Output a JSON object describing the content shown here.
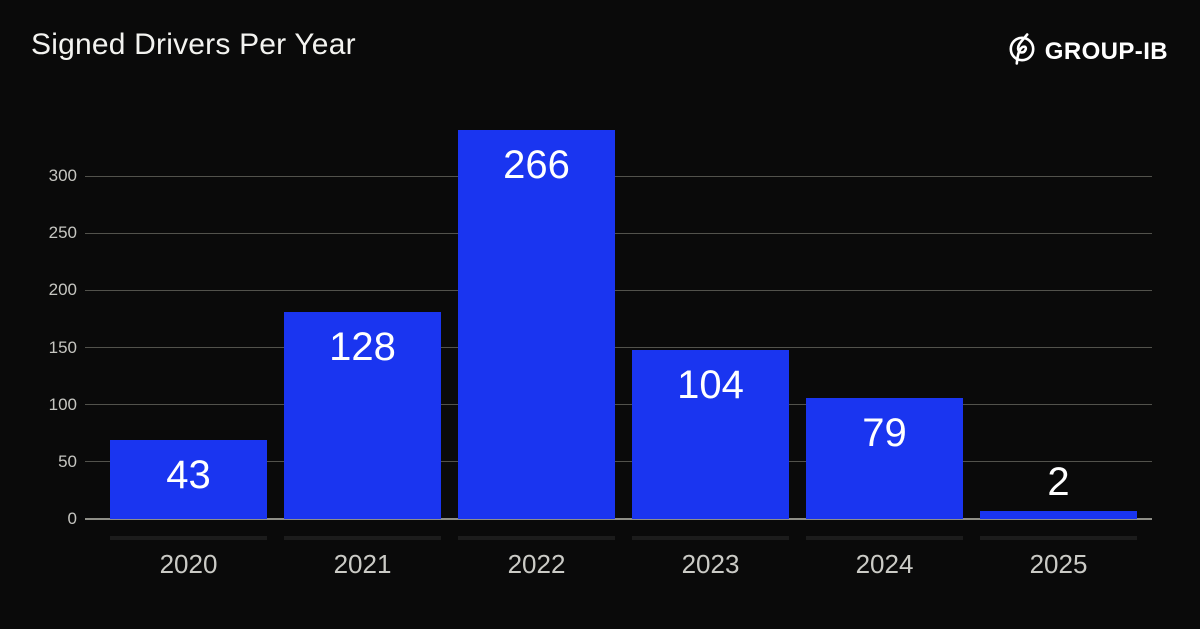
{
  "header": {
    "title": "Signed Drivers Per Year",
    "brand": {
      "name": "GROUP-IB",
      "icon": "group-ib-circle-slash-logo"
    }
  },
  "chart_data": {
    "type": "bar",
    "title": "Signed Drivers Per Year",
    "categories": [
      "2020",
      "2021",
      "2022",
      "2023",
      "2024",
      "2025"
    ],
    "values": [
      43,
      128,
      266,
      104,
      79,
      2
    ],
    "bar_visual_axis_units": [
      69,
      181,
      340,
      148,
      106,
      7
    ],
    "xlabel": "",
    "ylabel": "",
    "yticks": [
      0,
      50,
      100,
      150,
      200,
      250,
      300
    ],
    "ylim": [
      0,
      300
    ],
    "grid": "horizontal",
    "legend": "none",
    "style": {
      "background": "#0a0a0a",
      "bar_color": "#1a35f0",
      "value_label_color": "#ffffff",
      "grid_color": "#52524c",
      "baseline_color": "#8f8f88",
      "base_strip_color": "#1c1c1c",
      "y_tick_color": "#c6c6c1",
      "x_tick_color": "#cbcbc6",
      "title_color": "#f3f3f0"
    }
  }
}
